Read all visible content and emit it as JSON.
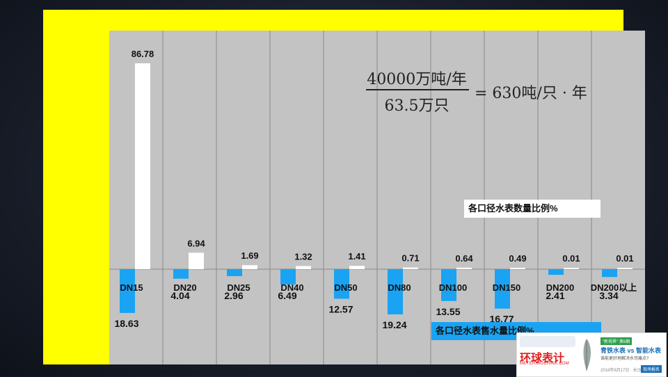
{
  "chart_data": {
    "type": "bar",
    "categories": [
      "DN15",
      "DN20",
      "DN25",
      "DN40",
      "DN50",
      "DN80",
      "DN100",
      "DN150",
      "DN200",
      "DN200以上"
    ],
    "series": [
      {
        "name": "各口径水表数量比例%",
        "color": "#ffffff",
        "direction": "up",
        "values": [
          86.78,
          6.94,
          1.69,
          1.32,
          1.41,
          0.71,
          0.64,
          0.49,
          0.01,
          0.01
        ],
        "labels": [
          "86.78",
          "6.94",
          "1.69",
          "1.32",
          "1.41",
          "0.71",
          "0.64",
          "0.49",
          "0.01",
          "0.01"
        ]
      },
      {
        "name": "各口径水表售水量比例%",
        "color": "#1aa3f2",
        "direction": "down",
        "values": [
          18.63,
          4.04,
          2.96,
          6.49,
          12.57,
          19.24,
          13.55,
          16.77,
          2.41,
          3.34
        ],
        "labels": [
          "18.63",
          "4.04",
          "2.96",
          "6.49",
          "12.57",
          "19.24",
          "13.55",
          "16.77",
          "2.41",
          "3.34"
        ]
      }
    ],
    "grid": "vertical",
    "legend_placement": "inside-right"
  },
  "formula": {
    "numerator": "40000万吨/年",
    "denominator": "63.5万只",
    "result": "= 630吨/只 · 年"
  },
  "watermark": {
    "brand": "环球表计",
    "site": "METERINGCHINA.COM",
    "badge": "“新视界”·第8期",
    "headline": "青铁水表 vs 智能水表",
    "tagline": "谁能更好地解决水司痛点?",
    "date": "2018年8月17日 · 长沙",
    "button": "现场报名"
  }
}
